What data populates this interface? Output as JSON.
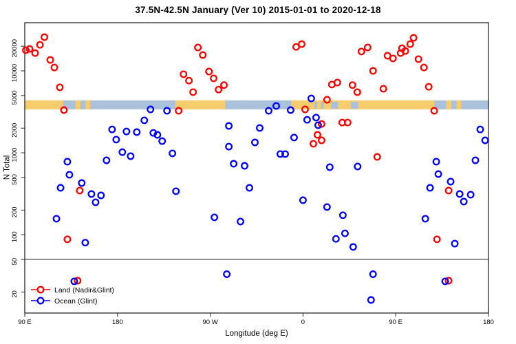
{
  "title": "37.5N-42.5N January (Ver 10)   2015-01-01 to 2020-12-18",
  "chart_data": {
    "type": "scatter",
    "title": "37.5N-42.5N January (Ver 10)   2015-01-01 to 2020-12-18",
    "xlabel": "Longitude (deg E)",
    "ylabel": "N Total",
    "x_axis": {
      "range_degE": [
        90,
        540
      ],
      "ticks": [
        {
          "degE": 90,
          "label": "90 E"
        },
        {
          "degE": 180,
          "label": "180"
        },
        {
          "degE": 270,
          "label": "90 W"
        },
        {
          "degE": 360,
          "label": "0"
        },
        {
          "degE": 450,
          "label": "90 E"
        },
        {
          "degE": 540,
          "label": "180"
        }
      ]
    },
    "y_axis": {
      "scale": "log",
      "range": [
        11,
        39000
      ],
      "ticks": [
        20,
        50,
        100,
        200,
        500,
        1000,
        2000,
        5000,
        10000,
        20000
      ]
    },
    "reference_line_n": 50,
    "grid": false,
    "legend_position": "bottom-left",
    "coast_band": {
      "n_range": [
        3390,
        4360
      ],
      "land_color": "#F6CC6D",
      "ocean_color": "#A9C1DB",
      "land_segments_degE": [
        [
          90,
          127.5
        ],
        [
          139,
          144
        ],
        [
          149,
          153.5
        ],
        [
          236,
          284.5
        ],
        [
          348.5,
          487.5
        ],
        [
          499,
          504
        ],
        [
          509,
          513.5
        ]
      ],
      "ocean_patches_degE": [
        [
          371,
          373.5
        ],
        [
          377.5,
          380
        ],
        [
          387,
          394
        ],
        [
          406.5,
          413.5
        ]
      ]
    },
    "series": [
      {
        "id": "land",
        "name": "Land (Nadir&Glint)",
        "color": "#FF0000",
        "points": [
          [
            91,
            17900
          ],
          [
            94.7,
            18500
          ],
          [
            100,
            16500
          ],
          [
            104.7,
            20800
          ],
          [
            109,
            25800
          ],
          [
            114.7,
            13600
          ],
          [
            118.7,
            11000
          ],
          [
            124,
            6300
          ],
          [
            128,
            3320
          ],
          [
            143.3,
            346
          ],
          [
            131.3,
            88
          ],
          [
            239.3,
            3260
          ],
          [
            244,
            9100
          ],
          [
            249.3,
            7600
          ],
          [
            253.3,
            5500
          ],
          [
            258,
            19300
          ],
          [
            262.7,
            15600
          ],
          [
            268.7,
            9800
          ],
          [
            273.3,
            8100
          ],
          [
            278,
            5900
          ],
          [
            283.3,
            6700
          ],
          [
            353.3,
            19600
          ],
          [
            358.7,
            21200
          ],
          [
            362,
            3390
          ],
          [
            370,
            1290
          ],
          [
            374,
            1655
          ],
          [
            378,
            2250
          ],
          [
            378,
            1420
          ],
          [
            383.3,
            4440
          ],
          [
            388,
            6800
          ],
          [
            393.3,
            7200
          ],
          [
            398,
            2340
          ],
          [
            403.3,
            2340
          ],
          [
            408,
            6700
          ],
          [
            412.7,
            5500
          ],
          [
            416.7,
            17200
          ],
          [
            422.7,
            19300
          ],
          [
            428,
            10000
          ],
          [
            432,
            892
          ],
          [
            438,
            6050
          ],
          [
            442,
            15300
          ],
          [
            447.3,
            14200
          ],
          [
            454.7,
            16500
          ],
          [
            456,
            18900
          ],
          [
            459.3,
            17500
          ],
          [
            464,
            21200
          ],
          [
            467.3,
            25300
          ],
          [
            472,
            13900
          ],
          [
            477.3,
            11000
          ],
          [
            482,
            6400
          ],
          [
            487.3,
            3260
          ],
          [
            501.3,
            346
          ],
          [
            490,
            88
          ],
          [
            141.3,
            27.5
          ],
          [
            501.3,
            27.5
          ]
        ]
      },
      {
        "id": "ocean",
        "name": "Ocean (Glint)",
        "color": "#0000FF",
        "points": [
          [
            206,
            2490
          ],
          [
            174.7,
            1930
          ],
          [
            188.7,
            1820
          ],
          [
            198.7,
            1790
          ],
          [
            178.7,
            1450
          ],
          [
            184.7,
            1020
          ],
          [
            192.7,
            910
          ],
          [
            169.3,
            810
          ],
          [
            131.3,
            780
          ],
          [
            133.3,
            540
          ],
          [
            145.3,
            428
          ],
          [
            124.7,
            374
          ],
          [
            154.7,
            314
          ],
          [
            164,
            302
          ],
          [
            158.7,
            249
          ],
          [
            120.7,
            157
          ],
          [
            148.7,
            80
          ],
          [
            228,
            3260
          ],
          [
            212,
            3390
          ],
          [
            214.7,
            1750
          ],
          [
            218.7,
            1655
          ],
          [
            223.3,
            1390
          ],
          [
            233.3,
            985
          ],
          [
            288,
            2130
          ],
          [
            318,
            2010
          ],
          [
            313.3,
            1340
          ],
          [
            288,
            1190
          ],
          [
            292.7,
            736
          ],
          [
            303.3,
            694
          ],
          [
            308,
            374
          ],
          [
            236.7,
            340
          ],
          [
            274,
            163
          ],
          [
            299.3,
            145
          ],
          [
            326.7,
            3260
          ],
          [
            334,
            3730
          ],
          [
            348,
            3320
          ],
          [
            368,
            4610
          ],
          [
            364,
            2530
          ],
          [
            372.7,
            2690
          ],
          [
            374.7,
            2170
          ],
          [
            351.3,
            1535
          ],
          [
            338,
            965
          ],
          [
            342.7,
            965
          ],
          [
            386,
            667
          ],
          [
            413,
            680
          ],
          [
            491.3,
            550
          ],
          [
            503.3,
            445
          ],
          [
            483.3,
            374
          ],
          [
            512,
            314
          ],
          [
            522.7,
            308
          ],
          [
            516,
            254
          ],
          [
            360,
            264
          ],
          [
            383.3,
            218
          ],
          [
            398.7,
            173
          ],
          [
            478.7,
            157
          ],
          [
            400.7,
            104
          ],
          [
            392,
            89
          ],
          [
            408.7,
            71
          ],
          [
            507.3,
            78
          ],
          [
            532,
            1930
          ],
          [
            536.7,
            1420
          ],
          [
            489.3,
            780
          ],
          [
            527.3,
            810
          ],
          [
            138,
            27
          ],
          [
            286,
            33
          ],
          [
            428,
            33
          ],
          [
            426,
            16
          ],
          [
            498,
            27
          ]
        ]
      }
    ]
  },
  "legend": {
    "items": [
      {
        "label": "Land (Nadir&Glint)",
        "color": "#FF0000"
      },
      {
        "label": "Ocean (Glint)",
        "color": "#0000FF"
      }
    ]
  }
}
